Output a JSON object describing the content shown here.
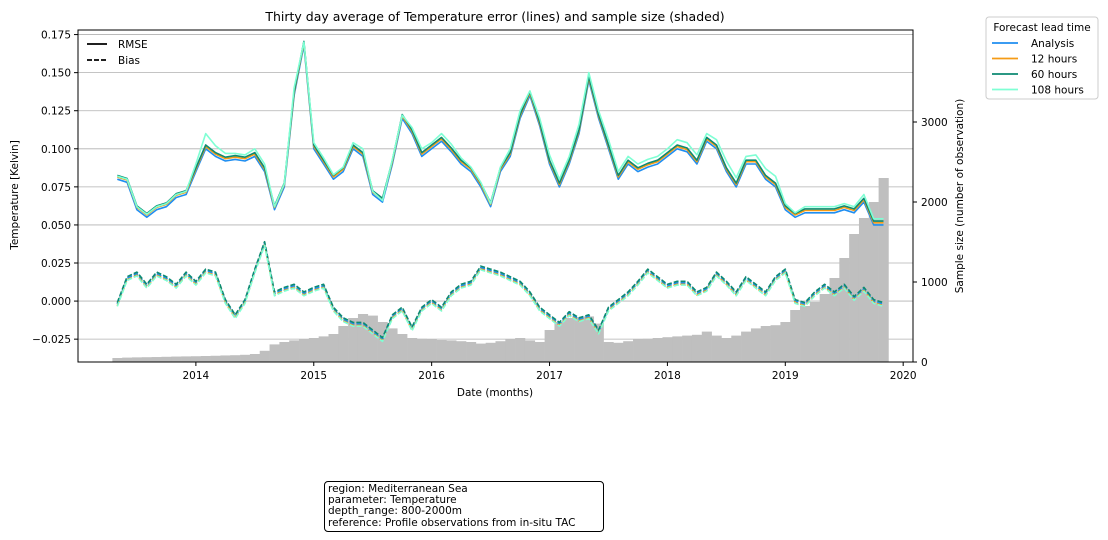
{
  "chart_data": {
    "type": "line",
    "title": "Thirty day average of Temperature error (lines) and sample size (shaded)",
    "xlabel": "Date (months)",
    "ylabel": "Temperature [Kelvin]",
    "y2label": "Sample size (number of observation)",
    "xlim": [
      "2013-01-01",
      "2020-02-01"
    ],
    "ylim": [
      -0.04,
      0.178
    ],
    "y2lim": [
      0,
      4150
    ],
    "x_ticks": [
      "2014",
      "2015",
      "2016",
      "2017",
      "2018",
      "2019",
      "2020"
    ],
    "y_ticks": [
      "−0.025",
      "0.000",
      "0.025",
      "0.050",
      "0.075",
      "0.100",
      "0.125",
      "0.150",
      "0.175"
    ],
    "y2_ticks": [
      "0",
      "1000",
      "2000",
      "3000"
    ],
    "grid": "horizontal",
    "style_legend": {
      "placement": "upper-left",
      "entries": [
        {
          "label": "RMSE",
          "dash": "solid"
        },
        {
          "label": "Bias",
          "dash": "dashed"
        }
      ]
    },
    "lead_time_legend": {
      "title": "Forecast lead time",
      "placement": "outside-top-right",
      "entries": [
        {
          "label": "Analysis",
          "color": "#1f8ef1"
        },
        {
          "label": "12 hours",
          "color": "#f59b16"
        },
        {
          "label": "60 hours",
          "color": "#0d8a72"
        },
        {
          "label": "108 hours",
          "color": "#7fffd4"
        }
      ]
    },
    "dates": [
      "2013-05",
      "2013-06",
      "2013-07",
      "2013-08",
      "2013-09",
      "2013-10",
      "2013-11",
      "2013-12",
      "2014-01",
      "2014-02",
      "2014-03",
      "2014-04",
      "2014-05",
      "2014-06",
      "2014-07",
      "2014-08",
      "2014-09",
      "2014-10",
      "2014-11",
      "2014-12",
      "2015-01",
      "2015-02",
      "2015-03",
      "2015-04",
      "2015-05",
      "2015-06",
      "2015-07",
      "2015-08",
      "2015-09",
      "2015-10",
      "2015-11",
      "2015-12",
      "2016-01",
      "2016-02",
      "2016-03",
      "2016-04",
      "2016-05",
      "2016-06",
      "2016-07",
      "2016-08",
      "2016-09",
      "2016-10",
      "2016-11",
      "2016-12",
      "2017-01",
      "2017-02",
      "2017-03",
      "2017-04",
      "2017-05",
      "2017-06",
      "2017-07",
      "2017-08",
      "2017-09",
      "2017-10",
      "2017-11",
      "2017-12",
      "2018-01",
      "2018-02",
      "2018-03",
      "2018-04",
      "2018-05",
      "2018-06",
      "2018-07",
      "2018-08",
      "2018-09",
      "2018-10",
      "2018-11",
      "2018-12",
      "2019-01",
      "2019-02",
      "2019-03",
      "2019-04",
      "2019-05",
      "2019-06",
      "2019-07",
      "2019-08",
      "2019-09",
      "2019-10",
      "2019-11"
    ],
    "rmse_analysis": [
      0.08,
      0.078,
      0.06,
      0.055,
      0.06,
      0.062,
      0.068,
      0.07,
      0.085,
      0.1,
      0.095,
      0.092,
      0.093,
      0.092,
      0.095,
      0.085,
      0.06,
      0.075,
      0.135,
      0.168,
      0.1,
      0.09,
      0.08,
      0.085,
      0.1,
      0.095,
      0.07,
      0.065,
      0.09,
      0.12,
      0.11,
      0.095,
      0.1,
      0.105,
      0.098,
      0.09,
      0.085,
      0.075,
      0.062,
      0.085,
      0.095,
      0.12,
      0.135,
      0.115,
      0.09,
      0.075,
      0.09,
      0.11,
      0.145,
      0.12,
      0.1,
      0.08,
      0.09,
      0.085,
      0.088,
      0.09,
      0.095,
      0.1,
      0.098,
      0.09,
      0.105,
      0.1,
      0.085,
      0.075,
      0.09,
      0.09,
      0.08,
      0.075,
      0.06,
      0.055,
      0.058,
      0.058,
      0.058,
      0.058,
      0.06,
      0.058,
      0.065,
      0.05,
      0.05
    ],
    "rmse_108h": [
      0.082,
      0.08,
      0.062,
      0.057,
      0.062,
      0.064,
      0.07,
      0.072,
      0.09,
      0.11,
      0.102,
      0.097,
      0.097,
      0.096,
      0.1,
      0.09,
      0.062,
      0.077,
      0.14,
      0.17,
      0.104,
      0.094,
      0.083,
      0.088,
      0.104,
      0.1,
      0.072,
      0.066,
      0.093,
      0.122,
      0.114,
      0.1,
      0.104,
      0.11,
      0.103,
      0.094,
      0.088,
      0.078,
      0.064,
      0.088,
      0.1,
      0.125,
      0.138,
      0.12,
      0.096,
      0.08,
      0.095,
      0.116,
      0.15,
      0.125,
      0.106,
      0.085,
      0.095,
      0.09,
      0.093,
      0.095,
      0.1,
      0.106,
      0.104,
      0.096,
      0.11,
      0.106,
      0.092,
      0.081,
      0.095,
      0.096,
      0.087,
      0.082,
      0.064,
      0.058,
      0.062,
      0.062,
      0.062,
      0.062,
      0.064,
      0.062,
      0.07,
      0.054,
      0.054
    ],
    "bias_analysis": [
      -0.002,
      0.015,
      0.018,
      0.01,
      0.018,
      0.015,
      0.01,
      0.018,
      0.012,
      0.02,
      0.018,
      0.0,
      -0.01,
      0.0,
      0.02,
      0.038,
      0.005,
      0.008,
      0.01,
      0.005,
      0.008,
      0.01,
      -0.005,
      -0.012,
      -0.015,
      -0.015,
      -0.02,
      -0.025,
      -0.01,
      -0.005,
      -0.018,
      -0.005,
      0.0,
      -0.005,
      0.005,
      0.01,
      0.012,
      0.022,
      0.02,
      0.018,
      0.015,
      0.012,
      0.005,
      -0.005,
      -0.01,
      -0.015,
      -0.008,
      -0.012,
      -0.01,
      -0.02,
      -0.005,
      0.0,
      0.005,
      0.012,
      0.02,
      0.015,
      0.01,
      0.012,
      0.012,
      0.005,
      0.008,
      0.018,
      0.012,
      0.005,
      0.015,
      0.01,
      0.005,
      0.015,
      0.02,
      0.0,
      -0.002,
      0.005,
      0.01,
      0.005,
      0.01,
      0.002,
      0.008,
      0.0,
      -0.002
    ],
    "sample_size": [
      50,
      55,
      58,
      60,
      62,
      65,
      68,
      70,
      72,
      75,
      78,
      82,
      85,
      90,
      100,
      140,
      220,
      250,
      270,
      280,
      300,
      320,
      350,
      450,
      550,
      600,
      580,
      500,
      420,
      350,
      300,
      290,
      280,
      275,
      270,
      260,
      250,
      230,
      240,
      260,
      280,
      300,
      270,
      250,
      400,
      500,
      550,
      560,
      570,
      480,
      250,
      240,
      260,
      280,
      290,
      300,
      310,
      320,
      330,
      340,
      380,
      330,
      300,
      330,
      380,
      420,
      450,
      460,
      500,
      650,
      700,
      750,
      850,
      1050,
      1300,
      1600,
      1800,
      2000,
      2300
    ]
  },
  "meta_box": {
    "lines": [
      "region: Mediterranean Sea",
      "parameter: Temperature",
      "depth_range: 800-2000m",
      "reference: Profile observations from in-situ TAC"
    ]
  }
}
